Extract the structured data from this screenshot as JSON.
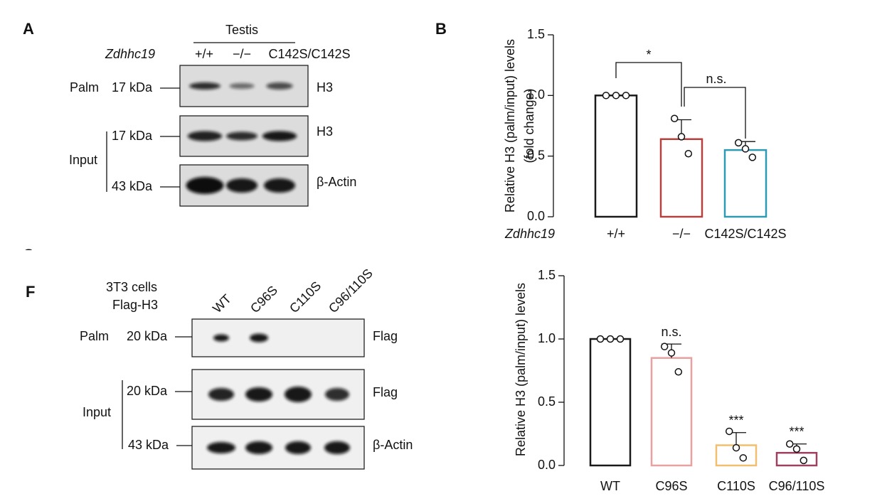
{
  "panel_letters": [
    "A",
    "B",
    "C",
    "F"
  ],
  "blot_a": {
    "tissue": "Testis",
    "genotype_label": "Zdhhc19",
    "lanes": [
      "+/+",
      "−/−",
      "C142S/C142S"
    ],
    "rows": [
      {
        "group": "Palm",
        "size": "17 kDa",
        "protein": "H3"
      },
      {
        "size": "17 kDa",
        "protein": "H3"
      },
      {
        "size": "43 kDa",
        "protein": "β-Actin"
      }
    ],
    "input_label": "Input"
  },
  "blot_f": {
    "cells": "3T3 cells",
    "construct": "Flag-H3",
    "lanes": [
      "WT",
      "C96S",
      "C110S",
      "C96/110S"
    ],
    "rows": [
      {
        "group": "Palm",
        "size": "20 kDa",
        "protein": "Flag"
      },
      {
        "size": "20 kDa",
        "protein": "Flag"
      },
      {
        "size": "43 kDa",
        "protein": "β-Actin"
      }
    ],
    "input_label": "Input"
  },
  "chart_data": [
    {
      "type": "bar",
      "y_label": [
        "Relative H3 (palm/input) levels",
        "(fold change)"
      ],
      "x_label": "Zdhhc19",
      "categories": [
        "+/+",
        "−/−",
        "C142S/C142S"
      ],
      "values": [
        1.0,
        0.64,
        0.55
      ],
      "errors": [
        0,
        0.16,
        0.07
      ],
      "points": [
        [
          1.0,
          1.0,
          1.0
        ],
        [
          0.81,
          0.66,
          0.52
        ],
        [
          0.61,
          0.56,
          0.49
        ]
      ],
      "colors": [
        "#1a1a1a",
        "#b5413f",
        "#2f9bb3"
      ],
      "significance": [
        "*",
        "n.s."
      ],
      "ylim": [
        0,
        1.5
      ],
      "yticks": [
        {
          "value": 0,
          "label": "0.0"
        },
        0.5,
        {
          "value": 1,
          "label": "1.0"
        },
        1.5
      ]
    },
    {
      "type": "bar",
      "y_label": [
        "Relative H3 (palm/input) levels"
      ],
      "categories": [
        "WT",
        "C96S",
        "C110S",
        "C96/110S"
      ],
      "values": [
        1.0,
        0.85,
        0.16,
        0.1
      ],
      "errors": [
        0,
        0.11,
        0.1,
        0.07
      ],
      "points": [
        [
          1.0,
          1.0,
          1.0
        ],
        [
          0.94,
          0.89,
          0.74
        ],
        [
          0.27,
          0.14,
          0.06
        ],
        [
          0.17,
          0.13,
          0.04
        ]
      ],
      "colors": [
        "#1a1a1a",
        "#e8a0a0",
        "#f0c070",
        "#a04060"
      ],
      "value_annotations": [
        null,
        "n.s.",
        "***",
        "***"
      ],
      "ylim": [
        0,
        1.5
      ],
      "yticks": [
        {
          "value": 0,
          "label": "0.0"
        },
        0.5,
        {
          "value": 1,
          "label": "1.0"
        },
        1.5
      ]
    }
  ]
}
